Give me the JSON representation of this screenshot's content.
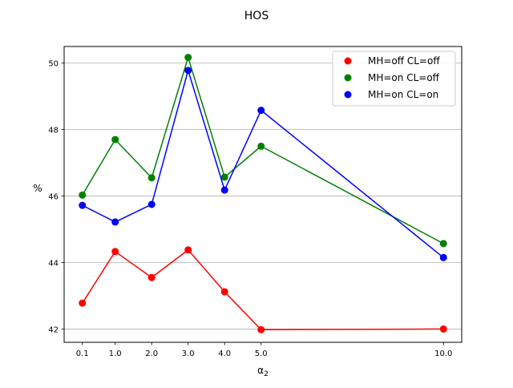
{
  "chart_data": {
    "type": "line",
    "title": "HOS",
    "xlabel": "α",
    "xlabel_subscript": "2",
    "ylabel": "%",
    "x": [
      0.1,
      1.0,
      2.0,
      3.0,
      4.0,
      5.0,
      10.0
    ],
    "xtick_labels": [
      "0.1",
      "1.0",
      "2.0",
      "3.0",
      "4.0",
      "5.0",
      "10.0"
    ],
    "yticks": [
      42,
      44,
      46,
      48,
      50
    ],
    "ytick_labels": [
      "42",
      "44",
      "46",
      "48",
      "50"
    ],
    "xlim": [
      -0.4,
      10.5
    ],
    "ylim": [
      41.6,
      50.5
    ],
    "grid": "y-major",
    "legend_position": "top-right",
    "series": [
      {
        "name": "MH=off CL=off",
        "color": "#ff0000",
        "values": [
          42.78,
          44.33,
          43.55,
          44.38,
          43.12,
          41.98,
          42.0
        ]
      },
      {
        "name": "MH=on CL=off",
        "color": "#008000",
        "values": [
          46.03,
          47.7,
          46.55,
          50.17,
          46.57,
          47.5,
          44.57
        ]
      },
      {
        "name": "MH=on CL=on",
        "color": "#0000ff",
        "values": [
          45.72,
          45.22,
          45.75,
          49.78,
          46.18,
          48.58,
          44.15
        ]
      }
    ]
  }
}
